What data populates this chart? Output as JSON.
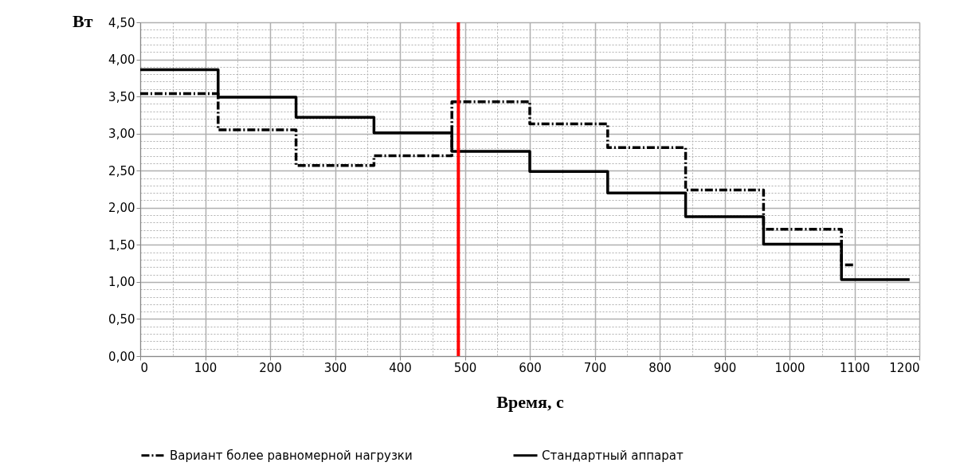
{
  "chart_data": {
    "type": "step",
    "xlabel": "Время, с",
    "ylabel": "Вт",
    "xlim": [
      0,
      1200
    ],
    "ylim": [
      0,
      4.5
    ],
    "xticks": [
      0,
      {
        "value": 50,
        "label": null
      },
      100,
      {
        "value": 150,
        "label": null
      },
      200,
      {
        "value": 250,
        "label": null
      },
      300,
      {
        "value": 350,
        "label": null
      },
      400,
      {
        "value": 450,
        "label": null
      },
      500,
      {
        "value": 550,
        "label": null
      },
      600,
      {
        "value": 650,
        "label": null
      },
      700,
      {
        "value": 750,
        "label": null
      },
      800,
      {
        "value": 850,
        "label": null
      },
      900,
      {
        "value": 950,
        "label": null
      },
      1000,
      {
        "value": 1050,
        "label": null
      },
      1100,
      {
        "value": 1150,
        "label": null
      },
      1200
    ],
    "yticks": [
      {
        "value": 0,
        "label": "0,00"
      },
      {
        "value": 0.1,
        "label": null
      },
      {
        "value": 0.2,
        "label": null
      },
      {
        "value": 0.3,
        "label": null
      },
      {
        "value": 0.4,
        "label": null
      },
      {
        "value": 0.5,
        "label": "0,50"
      },
      {
        "value": 0.6,
        "label": null
      },
      {
        "value": 0.7,
        "label": null
      },
      {
        "value": 0.8,
        "label": null
      },
      {
        "value": 0.9,
        "label": null
      },
      {
        "value": 1,
        "label": "1,00"
      },
      {
        "value": 1.1,
        "label": null
      },
      {
        "value": 1.2,
        "label": null
      },
      {
        "value": 1.3,
        "label": null
      },
      {
        "value": 1.4,
        "label": null
      },
      {
        "value": 1.5,
        "label": "1,50"
      },
      {
        "value": 1.6,
        "label": null
      },
      {
        "value": 1.7,
        "label": null
      },
      {
        "value": 1.8,
        "label": null
      },
      {
        "value": 1.9,
        "label": null
      },
      {
        "value": 2,
        "label": "2,00"
      },
      {
        "value": 2.1,
        "label": null
      },
      {
        "value": 2.2,
        "label": null
      },
      {
        "value": 2.3,
        "label": null
      },
      {
        "value": 2.4,
        "label": null
      },
      {
        "value": 2.5,
        "label": "2,50"
      },
      {
        "value": 2.6,
        "label": null
      },
      {
        "value": 2.7,
        "label": null
      },
      {
        "value": 2.8,
        "label": null
      },
      {
        "value": 2.9,
        "label": null
      },
      {
        "value": 3,
        "label": "3,00"
      },
      {
        "value": 3.1,
        "label": null
      },
      {
        "value": 3.2,
        "label": null
      },
      {
        "value": 3.3,
        "label": null
      },
      {
        "value": 3.4,
        "label": null
      },
      {
        "value": 3.5,
        "label": "3,50"
      },
      {
        "value": 3.6,
        "label": null
      },
      {
        "value": 3.7,
        "label": null
      },
      {
        "value": 3.8,
        "label": null
      },
      {
        "value": 3.9,
        "label": null
      },
      {
        "value": 4,
        "label": "4,00"
      },
      {
        "value": 4.1,
        "label": null
      },
      {
        "value": 4.2,
        "label": null
      },
      {
        "value": 4.3,
        "label": null
      },
      {
        "value": 4.4,
        "label": null
      },
      {
        "value": 4.5,
        "label": "4,50"
      }
    ],
    "grid": true,
    "legend": "bottom",
    "marker": "none",
    "series": [
      {
        "name": "Вариант более равномерной нагрузки",
        "color": "#000000",
        "line_style": "dashed",
        "x": [
          0,
          120,
          240,
          360,
          480,
          600,
          720,
          840,
          960,
          1080,
          1100
        ],
        "values": [
          3.54,
          3.05,
          2.57,
          2.7,
          3.43,
          3.13,
          2.81,
          2.24,
          1.71,
          1.23,
          1.23
        ]
      },
      {
        "name": "Стандартный аппарат",
        "color": "#000000",
        "line_style": "solid",
        "x": [
          0,
          120,
          240,
          360,
          480,
          600,
          720,
          840,
          960,
          1080,
          1185
        ],
        "values": [
          3.86,
          3.49,
          3.22,
          3.01,
          2.76,
          2.49,
          2.2,
          1.88,
          1.51,
          1.03,
          1.03
        ]
      }
    ],
    "ref_lines": [
      {
        "axis": "x",
        "value": 490,
        "color": "#ff0000",
        "line_style": "solid"
      }
    ]
  }
}
